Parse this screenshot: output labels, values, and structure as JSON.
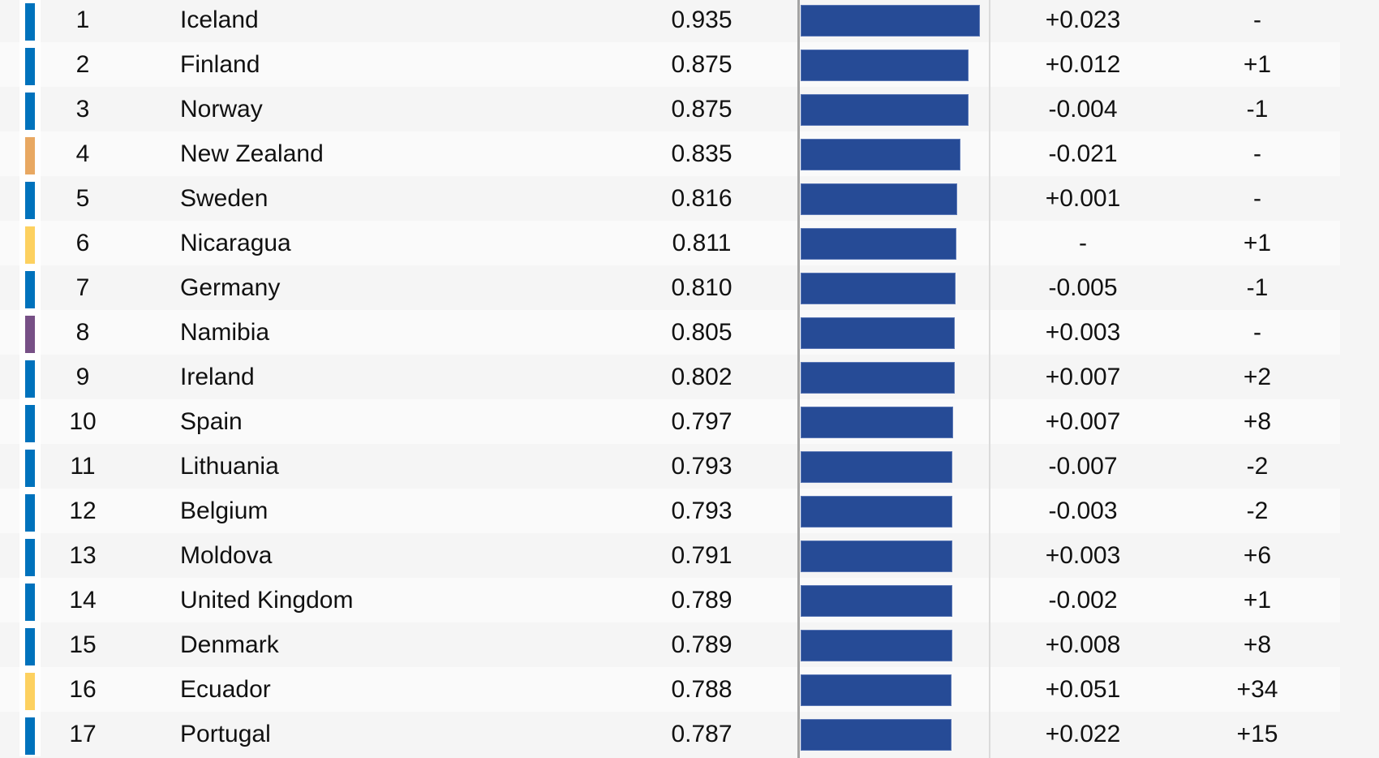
{
  "colors": {
    "bar": "#264b96",
    "region_europe": "#0072bc",
    "region_oceania": "#e8a862",
    "region_americas": "#fdd160",
    "region_africa": "#775086",
    "row_odd": "#f5f5f5",
    "row_even": "#fafafa"
  },
  "table": {
    "rows": [
      {
        "rank": "1",
        "country": "Iceland",
        "score": "0.935",
        "score_change": "+0.023",
        "rank_change": "-",
        "region_color": "#0072bc"
      },
      {
        "rank": "2",
        "country": "Finland",
        "score": "0.875",
        "score_change": "+0.012",
        "rank_change": "+1",
        "region_color": "#0072bc"
      },
      {
        "rank": "3",
        "country": "Norway",
        "score": "0.875",
        "score_change": "-0.004",
        "rank_change": "-1",
        "region_color": "#0072bc"
      },
      {
        "rank": "4",
        "country": "New Zealand",
        "score": "0.835",
        "score_change": "-0.021",
        "rank_change": "-",
        "region_color": "#e8a862"
      },
      {
        "rank": "5",
        "country": "Sweden",
        "score": "0.816",
        "score_change": "+0.001",
        "rank_change": "-",
        "region_color": "#0072bc"
      },
      {
        "rank": "6",
        "country": "Nicaragua",
        "score": "0.811",
        "score_change": "-",
        "rank_change": "+1",
        "region_color": "#fdd160"
      },
      {
        "rank": "7",
        "country": "Germany",
        "score": "0.810",
        "score_change": "-0.005",
        "rank_change": "-1",
        "region_color": "#0072bc"
      },
      {
        "rank": "8",
        "country": "Namibia",
        "score": "0.805",
        "score_change": "+0.003",
        "rank_change": "-",
        "region_color": "#775086"
      },
      {
        "rank": "9",
        "country": "Ireland",
        "score": "0.802",
        "score_change": "+0.007",
        "rank_change": "+2",
        "region_color": "#0072bc"
      },
      {
        "rank": "10",
        "country": "Spain",
        "score": "0.797",
        "score_change": "+0.007",
        "rank_change": "+8",
        "region_color": "#0072bc"
      },
      {
        "rank": "11",
        "country": "Lithuania",
        "score": "0.793",
        "score_change": "-0.007",
        "rank_change": "-2",
        "region_color": "#0072bc"
      },
      {
        "rank": "12",
        "country": "Belgium",
        "score": "0.793",
        "score_change": "-0.003",
        "rank_change": "-2",
        "region_color": "#0072bc"
      },
      {
        "rank": "13",
        "country": "Moldova",
        "score": "0.791",
        "score_change": "+0.003",
        "rank_change": "+6",
        "region_color": "#0072bc"
      },
      {
        "rank": "14",
        "country": "United Kingdom",
        "score": "0.789",
        "score_change": "-0.002",
        "rank_change": "+1",
        "region_color": "#0072bc"
      },
      {
        "rank": "15",
        "country": "Denmark",
        "score": "0.789",
        "score_change": "+0.008",
        "rank_change": "+8",
        "region_color": "#0072bc"
      },
      {
        "rank": "16",
        "country": "Ecuador",
        "score": "0.788",
        "score_change": "+0.051",
        "rank_change": "+34",
        "region_color": "#fdd160"
      },
      {
        "rank": "17",
        "country": "Portugal",
        "score": "0.787",
        "score_change": "+0.022",
        "rank_change": "+15",
        "region_color": "#0072bc"
      }
    ]
  },
  "chart_data": {
    "type": "bar",
    "orientation": "horizontal",
    "title": "",
    "xlabel": "",
    "ylabel": "",
    "xlim": [
      0,
      1
    ],
    "grid": false,
    "legend": null,
    "categories": [
      "Iceland",
      "Finland",
      "Norway",
      "New Zealand",
      "Sweden",
      "Nicaragua",
      "Germany",
      "Namibia",
      "Ireland",
      "Spain",
      "Lithuania",
      "Belgium",
      "Moldova",
      "United Kingdom",
      "Denmark",
      "Ecuador",
      "Portugal"
    ],
    "values": [
      0.935,
      0.875,
      0.875,
      0.835,
      0.816,
      0.811,
      0.81,
      0.805,
      0.802,
      0.797,
      0.793,
      0.793,
      0.791,
      0.789,
      0.789,
      0.788,
      0.787
    ],
    "ranks": [
      1,
      2,
      3,
      4,
      5,
      6,
      7,
      8,
      9,
      10,
      11,
      12,
      13,
      14,
      15,
      16,
      17
    ],
    "score_change": [
      "+0.023",
      "+0.012",
      "-0.004",
      "-0.021",
      "+0.001",
      "-",
      "-0.005",
      "+0.003",
      "+0.007",
      "+0.007",
      "-0.007",
      "-0.003",
      "+0.003",
      "-0.002",
      "+0.008",
      "+0.051",
      "+0.022"
    ],
    "rank_change": [
      "-",
      "+1",
      "-1",
      "-",
      "-",
      "+1",
      "-1",
      "-",
      "+2",
      "+8",
      "-2",
      "-2",
      "+6",
      "+1",
      "+8",
      "+34",
      "+15"
    ],
    "bar_color": "#264b96"
  }
}
